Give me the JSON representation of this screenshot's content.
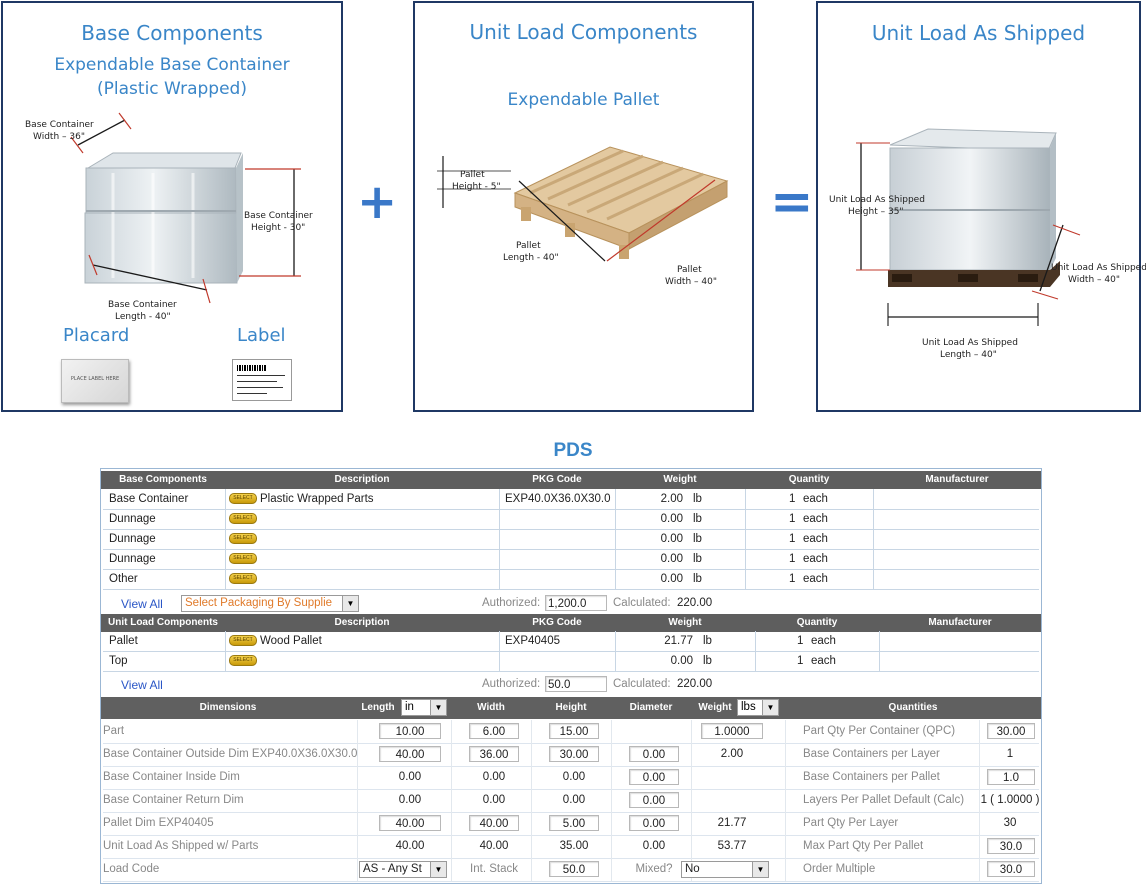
{
  "panel1": {
    "title": "Base Components",
    "subtitle_line1": "Expendable Base Container",
    "subtitle_line2": "(Plastic Wrapped)",
    "width_label_line1": "Base Container",
    "width_label_line2": "Width – 36\"",
    "height_label_line1": "Base Container",
    "height_label_line2": "Height - 30\"",
    "length_label_line1": "Base Container",
    "length_label_line2": "Length - 40\"",
    "placard_label": "Placard",
    "label_label": "Label",
    "placard_text": "PLACE LABEL HERE"
  },
  "plus_sign": "+",
  "equals_sign": "=",
  "panel2": {
    "title": "Unit Load Components",
    "subtitle": "Expendable Pallet",
    "height_label_line1": "Pallet",
    "height_label_line2": "Height - 5\"",
    "length_label_line1": "Pallet",
    "length_label_line2": "Length - 40\"",
    "width_label_line1": "Pallet",
    "width_label_line2": "Width – 40\""
  },
  "panel3": {
    "title": "Unit Load As Shipped",
    "height_label_line1": "Unit Load As Shipped",
    "height_label_line2": "Height – 35\"",
    "width_label_line1": "Unit Load As Shipped",
    "width_label_line2": "Width – 40\"",
    "length_label_line1": "Unit Load As Shipped",
    "length_label_line2": "Length – 40\""
  },
  "pds_title": "PDS",
  "base_table": {
    "headers": [
      "Base Components",
      "Description",
      "PKG Code",
      "Weight",
      "Quantity",
      "Manufacturer"
    ],
    "select_label": "SELECT",
    "rows": [
      {
        "component": "Base Container",
        "description": "Plastic Wrapped Parts",
        "pkg_code": "EXP40.0X36.0X30.0",
        "weight": "2.00",
        "weight_unit": "lb",
        "quantity": "1",
        "quantity_unit": "each",
        "manufacturer": ""
      },
      {
        "component": "Dunnage",
        "description": "",
        "pkg_code": "",
        "weight": "0.00",
        "weight_unit": "lb",
        "quantity": "1",
        "quantity_unit": "each",
        "manufacturer": ""
      },
      {
        "component": "Dunnage",
        "description": "",
        "pkg_code": "",
        "weight": "0.00",
        "weight_unit": "lb",
        "quantity": "1",
        "quantity_unit": "each",
        "manufacturer": ""
      },
      {
        "component": "Dunnage",
        "description": "",
        "pkg_code": "",
        "weight": "0.00",
        "weight_unit": "lb",
        "quantity": "1",
        "quantity_unit": "each",
        "manufacturer": ""
      },
      {
        "component": "Other",
        "description": "",
        "pkg_code": "",
        "weight": "0.00",
        "weight_unit": "lb",
        "quantity": "1",
        "quantity_unit": "each",
        "manufacturer": ""
      }
    ],
    "view_all": "View All",
    "supplier_select": "Select Packaging By Supplie",
    "authorized_label": "Authorized:",
    "authorized_value": "1,200.0",
    "calculated_label": "Calculated:",
    "calculated_value": "220.00"
  },
  "unit_table": {
    "headers": [
      "Unit Load Components",
      "Description",
      "PKG Code",
      "Weight",
      "Quantity",
      "Manufacturer"
    ],
    "rows": [
      {
        "component": "Pallet",
        "description": "Wood Pallet",
        "pkg_code": "EXP40405",
        "weight": "21.77",
        "weight_unit": "lb",
        "quantity": "1",
        "quantity_unit": "each",
        "manufacturer": ""
      },
      {
        "component": "Top",
        "description": "",
        "pkg_code": "",
        "weight": "0.00",
        "weight_unit": "lb",
        "quantity": "1",
        "quantity_unit": "each",
        "manufacturer": ""
      }
    ],
    "view_all": "View All",
    "authorized_label": "Authorized:",
    "authorized_value": "50.0",
    "calculated_label": "Calculated:",
    "calculated_value": "220.00"
  },
  "dims_table": {
    "headers": {
      "dimensions": "Dimensions",
      "length": "Length",
      "length_unit": "in",
      "width": "Width",
      "height": "Height",
      "diameter": "Diameter",
      "weight": "Weight",
      "weight_unit": "lbs",
      "quantities": "Quantities"
    },
    "rows": [
      {
        "label": "Part",
        "length": "10.00",
        "width": "6.00",
        "height": "15.00",
        "diameter": "",
        "weight": "1.0000",
        "q_label": "Part Qty Per Container (QPC)",
        "q_value": "30.00"
      },
      {
        "label": "Base Container Outside Dim EXP40.0X36.0X30.0",
        "length": "40.00",
        "width": "36.00",
        "height": "30.00",
        "diameter": "0.00",
        "weight": "2.00",
        "q_label": "Base Containers per Layer",
        "q_value": "1"
      },
      {
        "label": "Base Container Inside Dim",
        "length": "0.00",
        "width": "0.00",
        "height": "0.00",
        "diameter": "0.00",
        "weight": "",
        "q_label": "Base Containers per Pallet",
        "q_value": "1.0"
      },
      {
        "label": "Base Container Return Dim",
        "length": "0.00",
        "width": "0.00",
        "height": "0.00",
        "diameter": "0.00",
        "weight": "",
        "q_label": "Layers Per Pallet Default (Calc)",
        "q_value": "1 ( 1.0000 )"
      },
      {
        "label": "Pallet Dim EXP40405",
        "length": "40.00",
        "width": "40.00",
        "height": "5.00",
        "diameter": "0.00",
        "weight": "21.77",
        "q_label": "Part Qty Per Layer",
        "q_value": "30"
      },
      {
        "label": "Unit Load As Shipped w/ Parts",
        "length": "40.00",
        "width": "40.00",
        "height": "35.00",
        "diameter": "0.00",
        "weight": "53.77",
        "q_label": "Max Part Qty Per Pallet",
        "q_value": "30.0"
      },
      {
        "label": "Load Code",
        "length": "AS - Any St",
        "width": "Int. Stack",
        "height": "50.0",
        "diameter": "Mixed?",
        "weight": "No",
        "q_label": "Order Multiple",
        "q_value": "30.0"
      }
    ]
  }
}
